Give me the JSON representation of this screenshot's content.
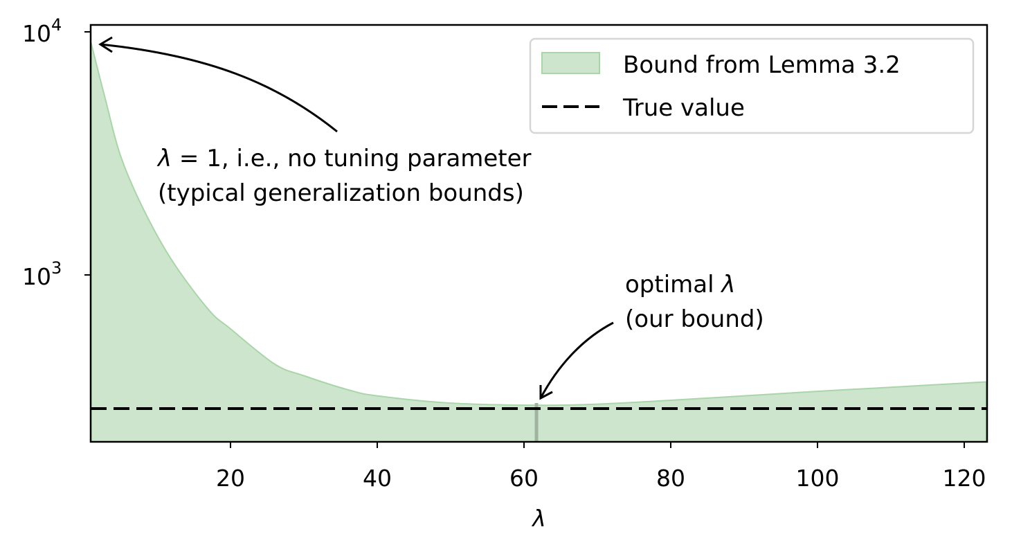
{
  "chart_data": {
    "type": "area",
    "title": "",
    "xlabel": "λ",
    "ylabel": "",
    "xlim": [
      1,
      123
    ],
    "ylim": [
      206,
      10700
    ],
    "yscale": "log",
    "grid": false,
    "legend_position": "upper right",
    "x_ticks": [
      "20",
      "40",
      "60",
      "80",
      "100",
      "120"
    ],
    "y_ticks": [
      {
        "base": "10",
        "exp": "4",
        "value": 10000
      },
      {
        "base": "10",
        "exp": "3",
        "value": 1000
      }
    ],
    "series": [
      {
        "name": "Bound from Lemma 3.2",
        "kind": "fill_between",
        "color": "#a9d5a9",
        "x": [
          1,
          3,
          5,
          8,
          12,
          17,
          20,
          26,
          30,
          36,
          40,
          50,
          61.7,
          70,
          80,
          90,
          100,
          110,
          123
        ],
        "values": [
          9000,
          5200,
          3100,
          1900,
          1150,
          720,
          600,
          430,
          385,
          337,
          318,
          297,
          291,
          294,
          305,
          318,
          332,
          345,
          363
        ]
      },
      {
        "name": "True value",
        "kind": "hline",
        "style": "dashed",
        "color": "#000000",
        "value": 282
      }
    ],
    "optimal_lambda": 61.7,
    "annotations": [
      {
        "lines": [
          "λ = 1, i.e., no tuning parameter",
          "(typical generalization bounds)"
        ],
        "points_to": {
          "x": 1,
          "y": 9000
        }
      },
      {
        "lines": [
          "optimal λ",
          "(our bound)"
        ],
        "points_to": {
          "x": 61.7,
          "y": 291
        }
      }
    ]
  },
  "axes": {
    "xlabel": "λ",
    "x_ticks": [
      "20",
      "40",
      "60",
      "80",
      "100",
      "120"
    ],
    "y_ticks": [
      {
        "base": "10",
        "exp": "4"
      },
      {
        "base": "10",
        "exp": "3"
      }
    ]
  },
  "legend": {
    "items": [
      {
        "label": "Bound from Lemma 3.2",
        "swatch": "fill",
        "color": "#a9d5a9"
      },
      {
        "label": "True value",
        "swatch": "dashed-line",
        "color": "#000000"
      }
    ]
  },
  "annotations": {
    "left": {
      "line1_prefix": "λ",
      "line1_rest": " = 1, i.e., no tuning parameter",
      "line2": "(typical generalization bounds)"
    },
    "right": {
      "line1_prefix": "optimal ",
      "line1_lambda": "λ",
      "line2": "(our bound)"
    }
  }
}
